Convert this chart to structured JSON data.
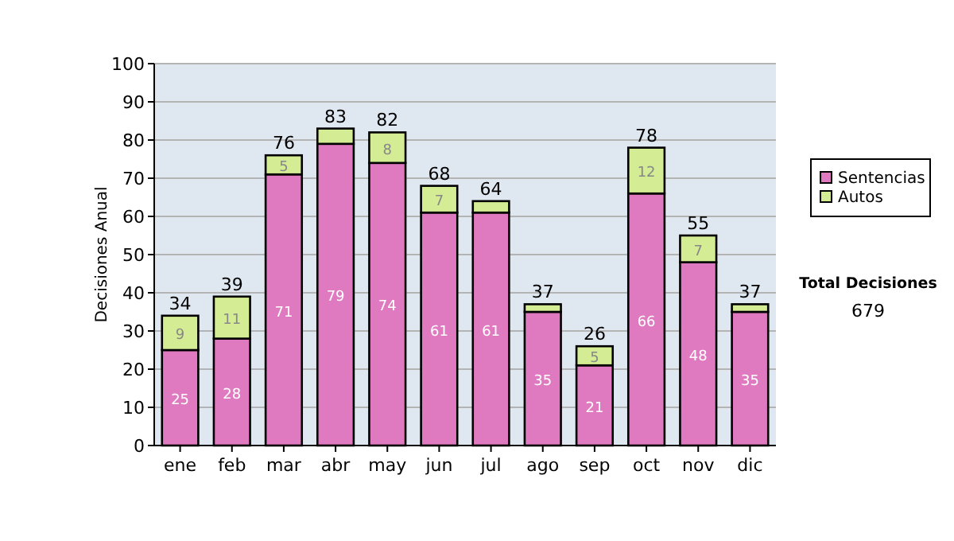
{
  "chart_data": {
    "type": "bar",
    "stacked": true,
    "ylabel": "Decisiones Anual",
    "categories": [
      "ene",
      "feb",
      "mar",
      "abr",
      "may",
      "jun",
      "jul",
      "ago",
      "sep",
      "oct",
      "nov",
      "dic"
    ],
    "series": [
      {
        "name": "Sentencias",
        "color": "#e07ac0",
        "values": [
          25,
          28,
          71,
          79,
          74,
          61,
          61,
          35,
          21,
          66,
          48,
          35
        ],
        "value_labels": [
          "25",
          "28",
          "71",
          "79",
          "74",
          "61",
          "61",
          "35",
          "21",
          "66",
          "48",
          "35"
        ]
      },
      {
        "name": "Autos",
        "color": "#d4ec94",
        "values": [
          9,
          11,
          5,
          4,
          8,
          7,
          3,
          2,
          5,
          12,
          7,
          2
        ],
        "value_labels": [
          "9",
          "11",
          "5",
          null,
          "8",
          "7",
          null,
          null,
          "5",
          "12",
          "7",
          null
        ]
      }
    ],
    "totals": [
      "34",
      "39",
      "76",
      "83",
      "82",
      "68",
      "64",
      "37",
      "26",
      "78",
      "55",
      "37"
    ],
    "ylim": [
      0,
      100
    ],
    "yticks": [
      0,
      10,
      20,
      30,
      40,
      50,
      60,
      70,
      80,
      90,
      100
    ],
    "grid": "y",
    "legend": "right",
    "annotations": [
      "Total Decisiones",
      "679"
    ]
  }
}
